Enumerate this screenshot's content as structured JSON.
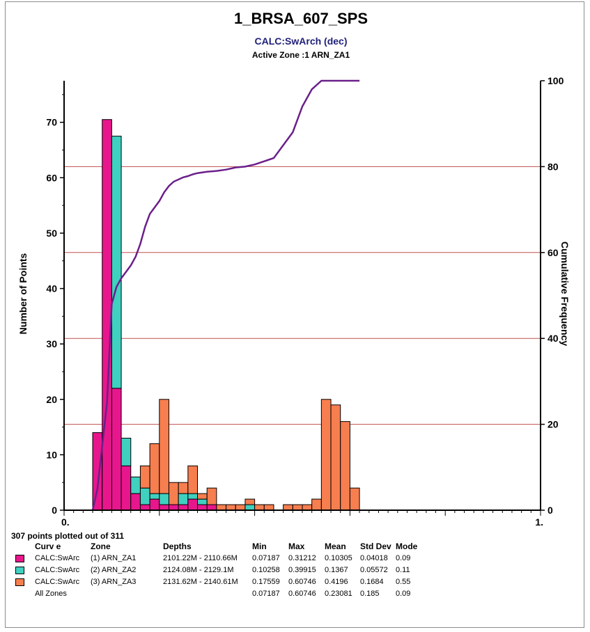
{
  "chart_data": {
    "type": "bar",
    "title": "1_BRSA_607_SPS",
    "subtitle": "CALC:SwArch (dec)",
    "subtitle2": "Active Zone :1  ARN_ZA1",
    "ylabel": "Number of Points",
    "y2label": "Cumulative Frequency",
    "xlim": [
      0,
      1
    ],
    "ylim": [
      0,
      77.5
    ],
    "y2lim": [
      0,
      100
    ],
    "yticks": [
      "0",
      "10",
      "20",
      "30",
      "40",
      "50",
      "60",
      "70"
    ],
    "y2ticks": [
      "0",
      "20",
      "40",
      "60",
      "80",
      "100"
    ],
    "xticks": [
      "0.",
      "1."
    ],
    "grid_lines_y2": [
      20,
      40,
      60,
      80
    ],
    "bin_width": 0.02,
    "bins_x0": [
      0.06,
      0.08,
      0.1,
      0.12,
      0.14,
      0.16,
      0.18,
      0.2,
      0.22,
      0.24,
      0.26,
      0.28,
      0.3,
      0.32,
      0.34,
      0.36,
      0.38,
      0.4,
      0.42,
      0.44,
      0.46,
      0.48,
      0.5,
      0.52,
      0.54,
      0.56,
      0.58,
      0.6
    ],
    "series": [
      {
        "name": "(1) ARN_ZA1",
        "color": "#e8168c",
        "values": [
          14,
          70.5,
          22,
          8,
          3,
          1,
          2,
          1,
          1,
          1,
          2,
          1,
          1,
          0,
          0,
          0,
          0,
          0,
          0,
          0,
          0,
          0,
          0,
          0,
          0,
          0,
          0,
          0
        ]
      },
      {
        "name": "(2) ARN_ZA2",
        "color": "#40d0c0",
        "values": [
          0,
          0,
          45.5,
          5,
          3,
          3,
          1,
          2,
          0,
          2,
          1,
          1,
          0,
          0,
          0,
          0,
          1,
          0,
          0,
          0,
          0,
          0,
          0,
          0,
          0,
          0,
          0,
          0
        ]
      },
      {
        "name": "(3) ARN_ZA3",
        "color": "#f77e4f",
        "values": [
          0,
          0,
          0,
          0,
          0,
          4,
          9,
          17,
          4,
          2,
          5,
          1,
          3,
          1,
          1,
          1,
          1,
          1,
          1,
          0,
          1,
          1,
          1,
          2,
          20,
          19,
          16,
          4
        ]
      }
    ],
    "cumulative": {
      "name": "Cumulative Frequency",
      "color": "#6a1f8a",
      "x": [
        0.06,
        0.07,
        0.08,
        0.09,
        0.1,
        0.11,
        0.12,
        0.13,
        0.14,
        0.15,
        0.16,
        0.17,
        0.18,
        0.19,
        0.2,
        0.21,
        0.22,
        0.23,
        0.24,
        0.25,
        0.26,
        0.27,
        0.28,
        0.3,
        0.32,
        0.34,
        0.36,
        0.38,
        0.4,
        0.44,
        0.48,
        0.5,
        0.52,
        0.54,
        0.56,
        0.58,
        0.6,
        0.62
      ],
      "y": [
        0,
        5,
        15,
        25,
        48,
        52,
        54,
        55.5,
        57,
        59,
        62,
        66,
        69,
        70.5,
        72,
        74,
        75.5,
        76.5,
        77,
        77.5,
        77.8,
        78.2,
        78.5,
        78.8,
        79,
        79.3,
        79.8,
        80,
        80.5,
        82,
        88,
        94,
        98,
        100,
        100,
        100,
        100,
        100
      ]
    }
  },
  "stats_header": {
    "points_plotted": "307 points plotted out of 311",
    "curve": "Curv e",
    "zone": "Zone",
    "depths": "Depths",
    "min": "Min",
    "max": "Max",
    "mean": "Mean",
    "std_dev": "Std Dev",
    "mode": "Mode"
  },
  "stats_rows": [
    {
      "curve": "CALC:SwArc",
      "zone": "(1) ARN_ZA1",
      "depths": "2101.22M - 2110.66M",
      "min": "0.07187",
      "max": "0.31212",
      "mean": "0.10305",
      "std_dev": "0.04018",
      "mode": "0.09",
      "color": "#e8168c"
    },
    {
      "curve": "CALC:SwArc",
      "zone": "(2) ARN_ZA2",
      "depths": "2124.08M - 2129.1M",
      "min": "0.10258",
      "max": "0.39915",
      "mean": "0.1367",
      "std_dev": "0.05572",
      "mode": "0.11",
      "color": "#40d0c0"
    },
    {
      "curve": "CALC:SwArc",
      "zone": "(3) ARN_ZA3",
      "depths": "2131.62M - 2140.61M",
      "min": "0.17559",
      "max": "0.60746",
      "mean": "0.4196",
      "std_dev": "0.1684",
      "mode": "0.55",
      "color": "#f77e4f"
    },
    {
      "curve": "All Zones",
      "zone": "",
      "depths": "",
      "min": "0.07187",
      "max": "0.60746",
      "mean": "0.23081",
      "std_dev": "0.185",
      "mode": "0.09",
      "color": ""
    }
  ]
}
